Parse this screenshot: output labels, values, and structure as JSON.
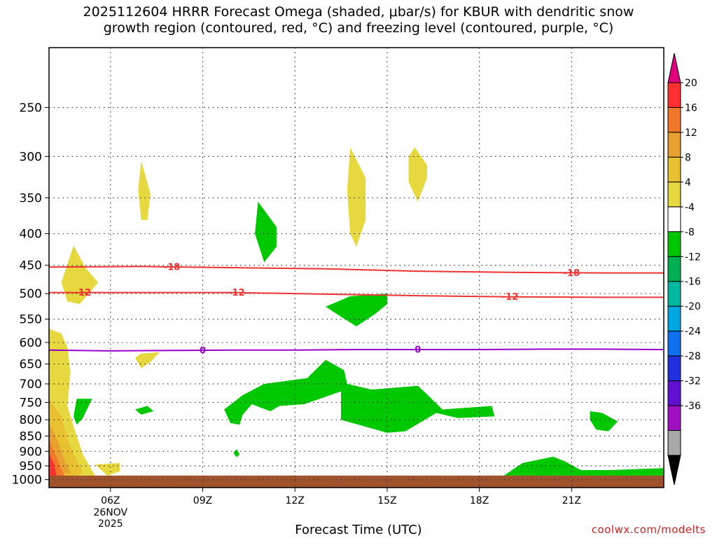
{
  "page": {
    "title": "2025112604 HRRR Forecast Omega (shaded, μbar/s) for KBUR with dendritic snow\ngrowth region (contoured, red, °C) and freezing level (contoured, purple, °C)",
    "watermark": "coolwx.com/modelts"
  },
  "chart_data": {
    "type": "cross-section",
    "title": "2025112604 HRRR Forecast Omega (shaded, μbar/s) for KBUR with dendritic snow growth region (contoured, red, °C) and freezing level (contoured, purple, °C)",
    "xlabel": "Forecast Time (UTC)",
    "ylabel": "",
    "x_range_hours": [
      4,
      24
    ],
    "y_range_hPa": [
      200,
      1030
    ],
    "y_scale": "log",
    "grid": true,
    "x_ticks": [
      {
        "hour": 6,
        "label": "06Z",
        "sub": [
          "26NOV",
          "2025"
        ]
      },
      {
        "hour": 9,
        "label": "09Z",
        "sub": []
      },
      {
        "hour": 12,
        "label": "12Z",
        "sub": []
      },
      {
        "hour": 15,
        "label": "15Z",
        "sub": []
      },
      {
        "hour": 18,
        "label": "18Z",
        "sub": []
      },
      {
        "hour": 21,
        "label": "21Z",
        "sub": []
      }
    ],
    "y_ticks": [
      250,
      300,
      350,
      400,
      450,
      500,
      550,
      600,
      650,
      700,
      750,
      800,
      850,
      900,
      950,
      1000
    ],
    "colorbar": {
      "top_color": "#e0007e",
      "bottom_color": "#000000",
      "bands": [
        {
          "color": "#ff3030"
        },
        {
          "color": "#f07828"
        },
        {
          "color": "#e8a030"
        },
        {
          "color": "#e8c030"
        },
        {
          "color": "#e8d840"
        },
        {
          "color": "#ffffff"
        },
        {
          "color": "#00c800"
        },
        {
          "color": "#00b050"
        },
        {
          "color": "#00b8a0"
        },
        {
          "color": "#00a8e0"
        },
        {
          "color": "#1070f0"
        },
        {
          "color": "#2030e0"
        },
        {
          "color": "#6010d0"
        },
        {
          "color": "#a010c0"
        },
        {
          "color": "#a8a8a8"
        }
      ],
      "labels": [
        "20",
        "16",
        "12",
        "8",
        "4",
        "-4",
        "-8",
        "-12",
        "-16",
        "-20",
        "-24",
        "-28",
        "-32",
        "-36"
      ]
    },
    "terrain_color": "#a0522d",
    "terrain_top_hPa": 985,
    "contours": [
      {
        "name": "-18",
        "color": "#ee3333",
        "label": "-18",
        "points": [
          [
            4,
            453
          ],
          [
            7,
            452
          ],
          [
            10,
            454
          ],
          [
            13,
            456
          ],
          [
            16,
            460
          ],
          [
            19,
            462
          ],
          [
            22,
            463
          ],
          [
            24,
            463
          ]
        ],
        "label_hours": [
          8,
          21
        ]
      },
      {
        "name": "-12",
        "color": "#ee3333",
        "label": "-12",
        "points": [
          [
            4,
            498
          ],
          [
            7,
            498
          ],
          [
            10,
            498
          ],
          [
            13,
            501
          ],
          [
            16,
            504
          ],
          [
            19,
            506
          ],
          [
            22,
            507
          ],
          [
            24,
            507
          ]
        ],
        "label_hours": [
          5.1,
          10.1,
          19
        ]
      },
      {
        "name": "0",
        "color": "#9900cc",
        "label": "0",
        "points": [
          [
            4,
            617
          ],
          [
            6,
            619
          ],
          [
            8,
            618
          ],
          [
            10,
            617
          ],
          [
            12,
            617
          ],
          [
            14,
            616
          ],
          [
            16,
            616
          ],
          [
            18,
            616
          ],
          [
            20,
            615
          ],
          [
            22,
            615
          ],
          [
            24,
            616
          ]
        ],
        "label_hours": [
          9,
          16
        ]
      }
    ],
    "shaded_regions": [
      {
        "name": "yellow-4-8",
        "color": "#e8d840",
        "points": [
          [
            4.4,
            480
          ],
          [
            4.8,
            418
          ],
          [
            5.2,
            455
          ],
          [
            5.6,
            480
          ],
          [
            5,
            520
          ],
          [
            4.6,
            515
          ]
        ]
      },
      {
        "name": "yellow-4-8",
        "color": "#e8d840",
        "points": [
          [
            7,
            305
          ],
          [
            7.3,
            345
          ],
          [
            7.2,
            380
          ],
          [
            7,
            380
          ],
          [
            6.9,
            340
          ]
        ]
      },
      {
        "name": "yellow-4-8",
        "color": "#e8d840",
        "points": [
          [
            7,
            625
          ],
          [
            7.6,
            622
          ],
          [
            7.3,
            645
          ],
          [
            7,
            660
          ],
          [
            6.8,
            635
          ]
        ]
      },
      {
        "name": "yellow-4-8",
        "color": "#e8d840",
        "points": [
          [
            13.8,
            290
          ],
          [
            14.3,
            325
          ],
          [
            14.3,
            380
          ],
          [
            14,
            420
          ],
          [
            13.8,
            400
          ],
          [
            13.7,
            340
          ]
        ]
      },
      {
        "name": "yellow-4-8",
        "color": "#e8d840",
        "points": [
          [
            15.9,
            290
          ],
          [
            16.3,
            310
          ],
          [
            16.3,
            325
          ],
          [
            16,
            355
          ],
          [
            15.7,
            330
          ],
          [
            15.7,
            300
          ]
        ]
      },
      {
        "name": "yellow-4-8",
        "color": "#e8d840",
        "points": [
          [
            5.5,
            945
          ],
          [
            6.3,
            940
          ],
          [
            6.3,
            970
          ],
          [
            5.9,
            985
          ],
          [
            5.7,
            965
          ]
        ]
      },
      {
        "name": "yellow-4-8",
        "color": "#e8d840",
        "points": [
          [
            4,
            570
          ],
          [
            4.4,
            580
          ],
          [
            4.6,
            610
          ],
          [
            4.7,
            670
          ],
          [
            4.6,
            760
          ],
          [
            4.8,
            820
          ],
          [
            5.1,
            910
          ],
          [
            5.5,
            985
          ],
          [
            4,
            985
          ]
        ]
      },
      {
        "name": "orange-8-12",
        "color": "#e8c030",
        "points": [
          [
            4,
            740
          ],
          [
            4.4,
            790
          ],
          [
            4.6,
            860
          ],
          [
            4.9,
            930
          ],
          [
            5.1,
            975
          ],
          [
            4.9,
            985
          ],
          [
            4,
            985
          ]
        ]
      },
      {
        "name": "orange-12-16",
        "color": "#e8a030",
        "points": [
          [
            4,
            810
          ],
          [
            4.3,
            870
          ],
          [
            4.5,
            930
          ],
          [
            4.7,
            975
          ],
          [
            4,
            985
          ]
        ]
      },
      {
        "name": "orange-16-20",
        "color": "#f07828",
        "points": [
          [
            4,
            860
          ],
          [
            4.2,
            910
          ],
          [
            4.4,
            960
          ],
          [
            4.5,
            985
          ],
          [
            4,
            985
          ]
        ]
      },
      {
        "name": "red-20plus",
        "color": "#ff3030",
        "points": [
          [
            4,
            905
          ],
          [
            4.15,
            940
          ],
          [
            4.25,
            985
          ],
          [
            4,
            985
          ]
        ]
      },
      {
        "name": "green-minus4-8",
        "color": "#00c800",
        "points": [
          [
            10.8,
            355
          ],
          [
            11.4,
            390
          ],
          [
            11.4,
            420
          ],
          [
            11,
            445
          ],
          [
            10.7,
            400
          ]
        ]
      },
      {
        "name": "green-minus4-8",
        "color": "#00c800",
        "points": [
          [
            13,
            525
          ],
          [
            13.8,
            505
          ],
          [
            15,
            500
          ],
          [
            15,
            520
          ],
          [
            14.6,
            540
          ],
          [
            14,
            565
          ],
          [
            13.5,
            545
          ]
        ]
      },
      {
        "name": "green-minus4-8",
        "color": "#00c800",
        "points": [
          [
            4.9,
            740
          ],
          [
            5.4,
            740
          ],
          [
            5.1,
            795
          ],
          [
            4.9,
            815
          ],
          [
            4.8,
            790
          ]
        ]
      },
      {
        "name": "green-minus4-8",
        "color": "#00c800",
        "points": [
          [
            6.8,
            770
          ],
          [
            7.2,
            760
          ],
          [
            7.4,
            775
          ],
          [
            7,
            785
          ]
        ]
      },
      {
        "name": "green-minus4-8",
        "color": "#00c800",
        "points": [
          [
            10,
            905
          ],
          [
            10.1,
            893
          ],
          [
            10.2,
            910
          ],
          [
            10.1,
            920
          ]
        ]
      },
      {
        "name": "green-minus4-8",
        "color": "#00c800",
        "points": [
          [
            9.7,
            770
          ],
          [
            10.3,
            730
          ],
          [
            11,
            700
          ],
          [
            12.4,
            685
          ],
          [
            13,
            640
          ],
          [
            13.6,
            665
          ],
          [
            13.7,
            700
          ],
          [
            14.5,
            715
          ],
          [
            16,
            705
          ],
          [
            16.2,
            720
          ],
          [
            16.8,
            770
          ],
          [
            18.4,
            760
          ],
          [
            18.5,
            790
          ],
          [
            17.3,
            795
          ],
          [
            16.6,
            780
          ],
          [
            15.6,
            835
          ],
          [
            15,
            840
          ],
          [
            13.5,
            800
          ],
          [
            13.5,
            720
          ],
          [
            12.3,
            755
          ],
          [
            11.5,
            760
          ],
          [
            11.2,
            775
          ],
          [
            10.6,
            755
          ],
          [
            10.3,
            785
          ],
          [
            10.2,
            815
          ],
          [
            9.9,
            810
          ]
        ]
      },
      {
        "name": "green-minus4-8",
        "color": "#00c800",
        "points": [
          [
            21.6,
            775
          ],
          [
            22,
            780
          ],
          [
            22.5,
            805
          ],
          [
            22.2,
            835
          ],
          [
            21.8,
            830
          ],
          [
            21.6,
            800
          ]
        ]
      },
      {
        "name": "green-minus4-8",
        "color": "#00c800",
        "points": [
          [
            18.8,
            985
          ],
          [
            19.4,
            940
          ],
          [
            20.4,
            918
          ],
          [
            20.8,
            935
          ],
          [
            21.3,
            965
          ],
          [
            22.3,
            965
          ],
          [
            24,
            958
          ],
          [
            24,
            985
          ]
        ]
      }
    ]
  }
}
